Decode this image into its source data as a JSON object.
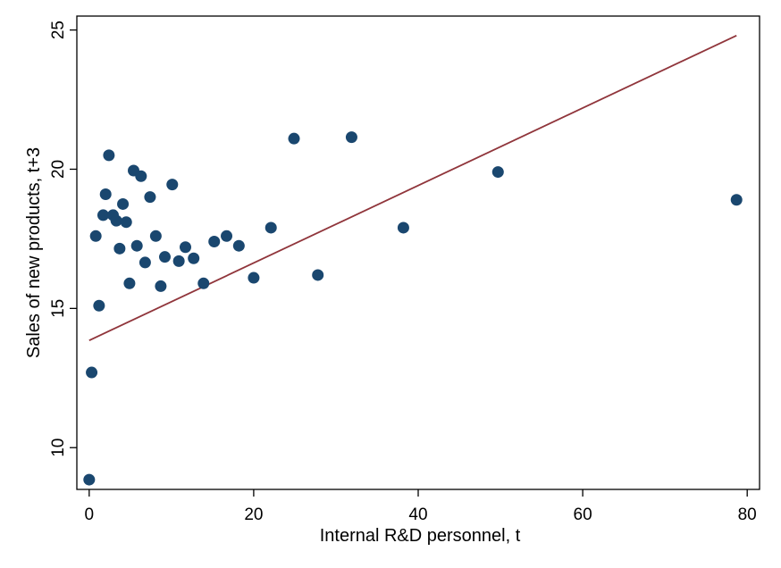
{
  "chart_data": {
    "type": "scatter",
    "title": "",
    "xlabel": "Internal R&D personnel, t",
    "ylabel": "Sales of new products, t+3",
    "xlim": [
      -1.5,
      81.5
    ],
    "ylim": [
      8.5,
      25.5
    ],
    "x_ticks": [
      0,
      20,
      40,
      60,
      80
    ],
    "y_ticks": [
      10,
      15,
      20,
      25
    ],
    "grid": false,
    "legend": "none",
    "colors": {
      "points": "#1a476f",
      "fit_line": "#90353b",
      "axis": "#000000"
    },
    "series": [
      {
        "kind": "scatter",
        "points": [
          [
            0,
            8.85
          ],
          [
            0.3,
            12.7
          ],
          [
            0.8,
            17.6
          ],
          [
            1.2,
            15.1
          ],
          [
            1.7,
            18.35
          ],
          [
            2.0,
            19.1
          ],
          [
            2.4,
            20.5
          ],
          [
            2.9,
            18.35
          ],
          [
            3.3,
            18.15
          ],
          [
            3.7,
            17.15
          ],
          [
            4.1,
            18.75
          ],
          [
            4.5,
            18.1
          ],
          [
            4.9,
            15.9
          ],
          [
            5.4,
            19.95
          ],
          [
            5.8,
            17.25
          ],
          [
            6.3,
            19.75
          ],
          [
            6.8,
            16.65
          ],
          [
            7.4,
            19.0
          ],
          [
            8.1,
            17.6
          ],
          [
            8.7,
            15.8
          ],
          [
            9.2,
            16.85
          ],
          [
            10.1,
            19.45
          ],
          [
            10.9,
            16.7
          ],
          [
            11.7,
            17.2
          ],
          [
            12.7,
            16.8
          ],
          [
            13.9,
            15.9
          ],
          [
            15.2,
            17.4
          ],
          [
            16.7,
            17.6
          ],
          [
            18.2,
            17.25
          ],
          [
            20.0,
            16.1
          ],
          [
            22.1,
            17.9
          ],
          [
            24.9,
            21.1
          ],
          [
            27.8,
            16.2
          ],
          [
            31.9,
            21.15
          ],
          [
            38.2,
            17.9
          ],
          [
            49.7,
            19.9
          ],
          [
            78.7,
            18.9
          ]
        ]
      },
      {
        "kind": "line",
        "points": [
          [
            0,
            13.85
          ],
          [
            78.7,
            24.8
          ]
        ]
      }
    ]
  }
}
